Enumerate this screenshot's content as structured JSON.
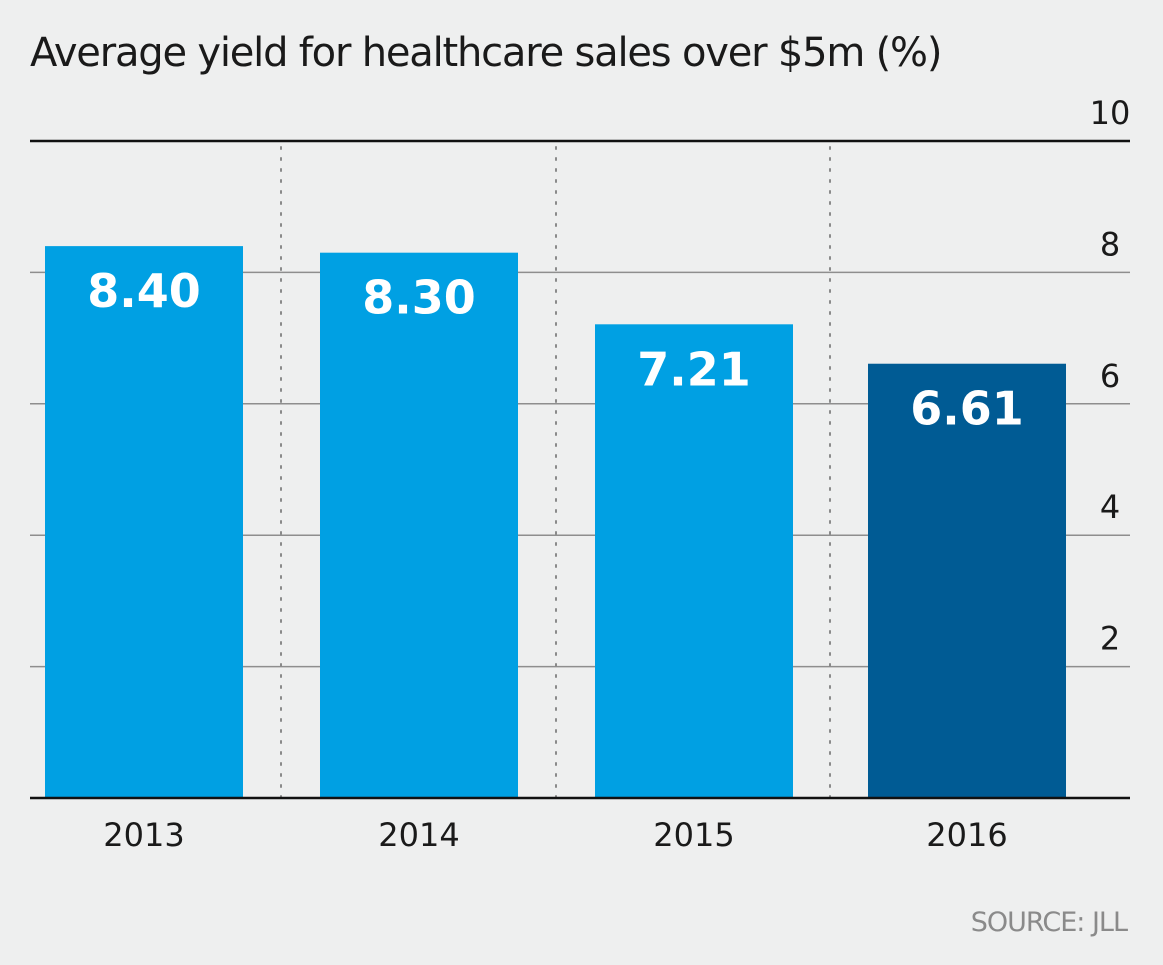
{
  "chart_data": {
    "type": "bar",
    "title": "Average yield for healthcare sales over $5m (%)",
    "categories": [
      "2013",
      "2014",
      "2015",
      "2016"
    ],
    "values": [
      8.4,
      8.3,
      7.21,
      6.61
    ],
    "value_labels": [
      "8.40",
      "8.30",
      "7.21",
      "6.61"
    ],
    "ylim": [
      0,
      10
    ],
    "yticks": [
      2,
      4,
      6,
      8,
      10
    ],
    "y_axis_side": "right",
    "grid": true,
    "bar_colors": [
      "#00a0e3",
      "#00a0e3",
      "#00a0e3",
      "#005b94"
    ],
    "source": "SOURCE: JLL"
  }
}
